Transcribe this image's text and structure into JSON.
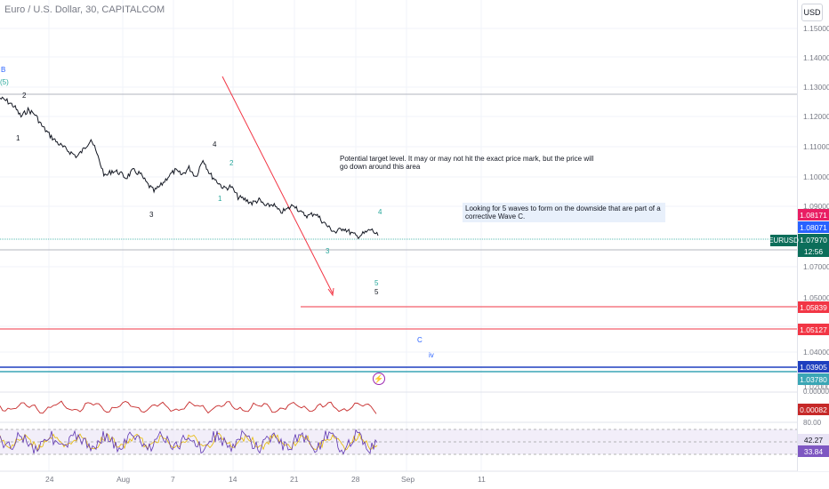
{
  "header": {
    "title": "Euro / U.S. Dollar, 30, CAPITALCOM",
    "currency": "USD"
  },
  "price_axis": {
    "ticks": [
      "1.15000",
      "1.14000",
      "1.13000",
      "1.12000",
      "1.11000",
      "1.10000",
      "1.09000",
      "1.07000",
      "1.05000",
      "1.04000",
      "1.02000"
    ],
    "tags": {
      "r1": "1.08171",
      "r2": "1.08071",
      "last": "1.07970",
      "timer": "12:56",
      "l1": "1.05839",
      "l2": "1.05127",
      "l3": "1.03905",
      "l4": "1.03780",
      "osc": "0.00082",
      "rsi1": "42.27",
      "rsi2": "33.84"
    },
    "symbol": "EURUSD",
    "colors": {
      "r1": "#e91e63",
      "r2": "#2962ff",
      "last": "#0c6e5a",
      "timer": "#0c6e5a",
      "l1": "#f23645",
      "l2": "#f23645",
      "l3": "#1e3fbf",
      "l4": "#3aa6b5",
      "osc": "#c62828",
      "rsi1": "#e8e3f5",
      "rsi2": "#7e57c2"
    }
  },
  "time_axis": {
    "labels": [
      "24",
      "Aug",
      "7",
      "14",
      "21",
      "28",
      "Sep",
      "11"
    ]
  },
  "indicators": {
    "osc_label": "0.00000",
    "rsi_top": "80.00"
  },
  "waves": {
    "B": "B",
    "p5": "(5)",
    "w2": "2",
    "w1": "1",
    "w4": "4",
    "g2": "2",
    "w3": "3",
    "g1": "1",
    "g4": "4",
    "g3": "3",
    "g5": "5",
    "b5": "5",
    "C": "C",
    "iv": "iv"
  },
  "annotations": {
    "target_note": "Potential target level. It may or may not hit the exact price mark, but the price will go down around this area",
    "waves_note": "Looking for 5 waves to form on the downside that are part of a corrective Wave C."
  },
  "chart_data": {
    "type": "line",
    "series": [
      {
        "values": [
          1.1265,
          1.1255,
          1.1238,
          1.1202,
          1.1225,
          1.121,
          1.117,
          1.1142,
          1.1118,
          1.1098,
          1.1082,
          1.1066,
          1.1092,
          1.1128,
          1.1064,
          1.0998,
          1.1018,
          1.1012,
          1.0994,
          1.1018,
          1.1008,
          1.0974,
          1.0948,
          1.0968,
          1.0998,
          1.1018,
          1.1004,
          1.1028,
          1.0998,
          1.1058,
          1.1006,
          1.0982,
          1.0958,
          1.0964,
          1.0928,
          1.092,
          1.0908,
          1.0918,
          1.0896,
          1.0904,
          1.0876,
          1.0886,
          1.0904,
          1.0874,
          1.0864,
          1.0874,
          1.0848,
          1.0824,
          1.0808,
          1.0824,
          1.0808,
          1.0794,
          1.0804,
          1.0818,
          1.0797
        ]
      }
    ],
    "levels": [
      1.12785,
      1.0785,
      1.07712,
      1.05839,
      1.05127,
      1.03905,
      1.0378
    ]
  }
}
